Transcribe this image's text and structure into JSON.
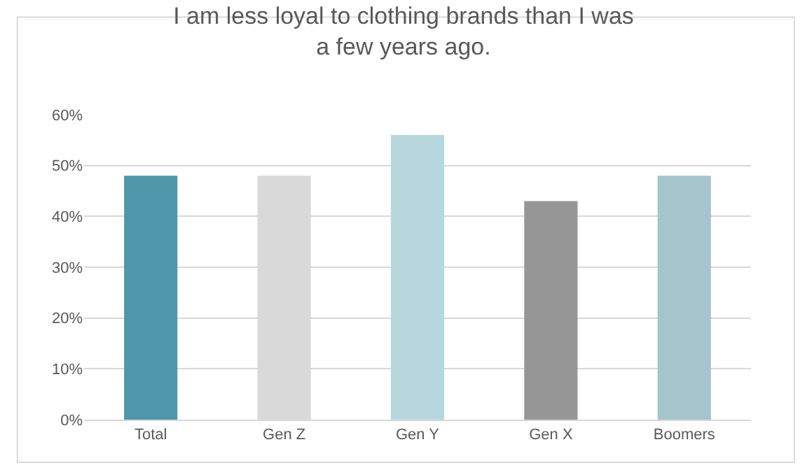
{
  "chart_data": {
    "type": "bar",
    "title": "I am less loyal to clothing brands than I was\na few years ago.",
    "categories": [
      "Total",
      "Gen Z",
      "Gen Y",
      "Gen X",
      "Boomers"
    ],
    "values": [
      48,
      48,
      56,
      43,
      48
    ],
    "colors": [
      "#4f97ab",
      "#d9d9d9",
      "#b7d7de",
      "#969696",
      "#a4c5cc"
    ],
    "ylim": [
      0,
      60
    ],
    "yticks": [
      {
        "value": 0,
        "label": "0%"
      },
      {
        "value": 10,
        "label": "10%"
      },
      {
        "value": 20,
        "label": "20%"
      },
      {
        "value": 30,
        "label": "30%"
      },
      {
        "value": 40,
        "label": "40%"
      },
      {
        "value": 50,
        "label": "50%"
      },
      {
        "value": 60,
        "label": "60%"
      }
    ],
    "grid": "y",
    "legend": false
  }
}
